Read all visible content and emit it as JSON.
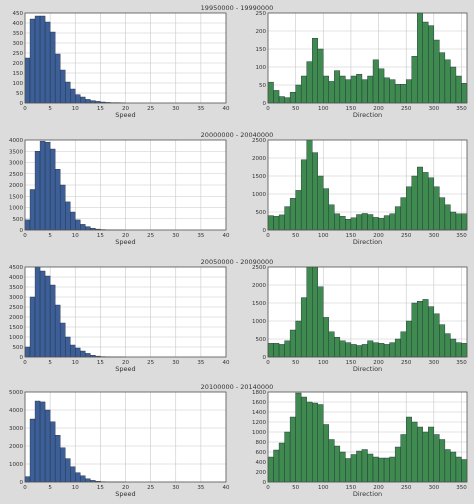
{
  "colors": {
    "background": "#dcdcdc",
    "plot_background": "#ffffff",
    "grid": "#c8c8c8",
    "speed_bar": "#3d5f98",
    "direction_bar": "#3f8a4e",
    "bar_edge": "#1e2a3a",
    "text": "#333333"
  },
  "chart_data": [
    {
      "type": "bar",
      "panel": "speed",
      "group_title": "19950000 - 19990000",
      "xlabel": "Speed",
      "xlim": [
        0,
        40
      ],
      "xticks": [
        0,
        5,
        10,
        15,
        20,
        25,
        30,
        35,
        40
      ],
      "ylim": [
        0,
        450
      ],
      "yticks": [
        0,
        50,
        100,
        150,
        200,
        250,
        300,
        350,
        400,
        450
      ],
      "bin_width": 1,
      "values": [
        225,
        420,
        435,
        435,
        405,
        355,
        245,
        165,
        105,
        70,
        42,
        30,
        18,
        12,
        8,
        5,
        3,
        2,
        2,
        1
      ],
      "grid": true,
      "bar_color": "#3d5f98"
    },
    {
      "type": "bar",
      "panel": "direction",
      "group_title": "",
      "xlabel": "Direction",
      "xlim": [
        0,
        360
      ],
      "xticks": [
        0,
        50,
        100,
        150,
        200,
        250,
        300,
        350
      ],
      "ylim": [
        0,
        250
      ],
      "yticks": [
        0,
        50,
        100,
        150,
        200,
        250
      ],
      "bin_width": 10,
      "values": [
        58,
        35,
        18,
        15,
        30,
        50,
        75,
        115,
        180,
        150,
        75,
        60,
        90,
        75,
        65,
        75,
        80,
        65,
        75,
        120,
        95,
        70,
        65,
        52,
        52,
        65,
        130,
        255,
        225,
        215,
        175,
        140,
        120,
        100,
        75,
        55
      ],
      "grid": true,
      "bar_color": "#3f8a4e"
    },
    {
      "type": "bar",
      "panel": "speed",
      "group_title": "20000000 - 20040000",
      "xlabel": "Speed",
      "xlim": [
        0,
        40
      ],
      "xticks": [
        0,
        5,
        10,
        15,
        20,
        25,
        30,
        35,
        40
      ],
      "ylim": [
        0,
        4000
      ],
      "yticks": [
        0,
        500,
        1000,
        1500,
        2000,
        2500,
        3000,
        3500,
        4000
      ],
      "bin_width": 1,
      "values": [
        450,
        1800,
        3500,
        3950,
        3900,
        3600,
        2700,
        2000,
        1250,
        800,
        450,
        250,
        150,
        80,
        40,
        20,
        10,
        5,
        2,
        1
      ],
      "grid": true,
      "bar_color": "#3d5f98"
    },
    {
      "type": "bar",
      "panel": "direction",
      "group_title": "",
      "xlabel": "Direction",
      "xlim": [
        0,
        360
      ],
      "xticks": [
        0,
        50,
        100,
        150,
        200,
        250,
        300,
        350
      ],
      "ylim": [
        0,
        2500
      ],
      "yticks": [
        0,
        500,
        1000,
        1500,
        2000,
        2500
      ],
      "bin_width": 10,
      "values": [
        400,
        380,
        420,
        650,
        880,
        1100,
        1950,
        2800,
        2150,
        1500,
        1150,
        700,
        450,
        380,
        300,
        340,
        430,
        460,
        430,
        350,
        330,
        400,
        450,
        650,
        900,
        1200,
        1500,
        1750,
        1600,
        1450,
        1200,
        900,
        700,
        500,
        450,
        450
      ],
      "grid": true,
      "bar_color": "#3f8a4e"
    },
    {
      "type": "bar",
      "panel": "speed",
      "group_title": "20050000 - 20090000",
      "xlabel": "Speed",
      "xlim": [
        0,
        40
      ],
      "xticks": [
        0,
        5,
        10,
        15,
        20,
        25,
        30,
        35,
        40
      ],
      "ylim": [
        0,
        4500
      ],
      "yticks": [
        0,
        500,
        1000,
        1500,
        2000,
        2500,
        3000,
        3500,
        4000,
        4500
      ],
      "bin_width": 1,
      "values": [
        500,
        3000,
        4500,
        4300,
        4050,
        3600,
        2600,
        1700,
        1000,
        600,
        450,
        300,
        180,
        90,
        45,
        20,
        10,
        5,
        2,
        1
      ],
      "grid": true,
      "bar_color": "#3d5f98"
    },
    {
      "type": "bar",
      "panel": "direction",
      "group_title": "",
      "xlabel": "Direction",
      "xlim": [
        0,
        360
      ],
      "xticks": [
        0,
        50,
        100,
        150,
        200,
        250,
        300,
        350
      ],
      "ylim": [
        0,
        2500
      ],
      "yticks": [
        0,
        500,
        1000,
        1500,
        2000,
        2500
      ],
      "bin_width": 10,
      "values": [
        380,
        380,
        350,
        450,
        750,
        1000,
        1650,
        2500,
        2550,
        1950,
        1100,
        700,
        550,
        450,
        400,
        350,
        320,
        350,
        450,
        400,
        380,
        350,
        400,
        500,
        700,
        1000,
        1500,
        1550,
        1600,
        1400,
        1200,
        900,
        650,
        500,
        400,
        380
      ],
      "grid": true,
      "bar_color": "#3f8a4e"
    },
    {
      "type": "bar",
      "panel": "speed",
      "group_title": "20100000 - 20140000",
      "xlabel": "Speed",
      "xlim": [
        0,
        40
      ],
      "xticks": [
        0,
        5,
        10,
        15,
        20,
        25,
        30,
        35,
        40
      ],
      "ylim": [
        0,
        5000
      ],
      "yticks": [
        0,
        1000,
        2000,
        3000,
        4000,
        5000
      ],
      "bin_width": 1,
      "values": [
        300,
        3500,
        4500,
        4450,
        4000,
        3350,
        2600,
        1900,
        1300,
        850,
        520,
        350,
        180,
        90,
        45,
        20,
        10,
        5,
        2,
        1
      ],
      "grid": true,
      "bar_color": "#3d5f98"
    },
    {
      "type": "bar",
      "panel": "direction",
      "group_title": "",
      "xlabel": "Direction",
      "xlim": [
        0,
        360
      ],
      "xticks": [
        0,
        50,
        100,
        150,
        200,
        250,
        300,
        350
      ],
      "ylim": [
        0,
        1800
      ],
      "yticks": [
        0,
        200,
        400,
        600,
        800,
        1000,
        1200,
        1400,
        1600,
        1800
      ],
      "bin_width": 10,
      "values": [
        500,
        640,
        780,
        1000,
        1300,
        1780,
        1700,
        1600,
        1580,
        1550,
        1150,
        850,
        720,
        600,
        470,
        550,
        620,
        650,
        560,
        500,
        480,
        480,
        500,
        700,
        950,
        1300,
        1200,
        1100,
        1000,
        1100,
        950,
        850,
        650,
        600,
        500,
        450
      ],
      "grid": true,
      "bar_color": "#3f8a4e"
    }
  ]
}
